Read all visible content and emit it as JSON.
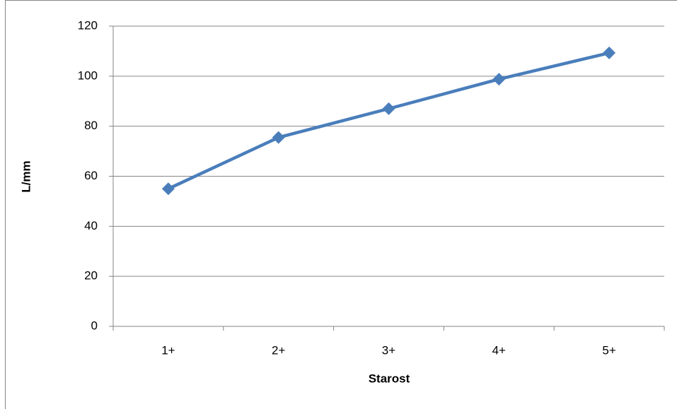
{
  "chart_data": {
    "type": "line",
    "categories": [
      "1+",
      "2+",
      "3+",
      "4+",
      "5+"
    ],
    "values": [
      55,
      75.5,
      87,
      98.8,
      109.3
    ],
    "color": "#4a7ebb",
    "xlabel": "Starost",
    "ylabel": "L/mm",
    "ylim": [
      0,
      120
    ],
    "yticks": [
      0,
      20,
      40,
      60,
      80,
      100,
      120
    ],
    "grid": true
  }
}
